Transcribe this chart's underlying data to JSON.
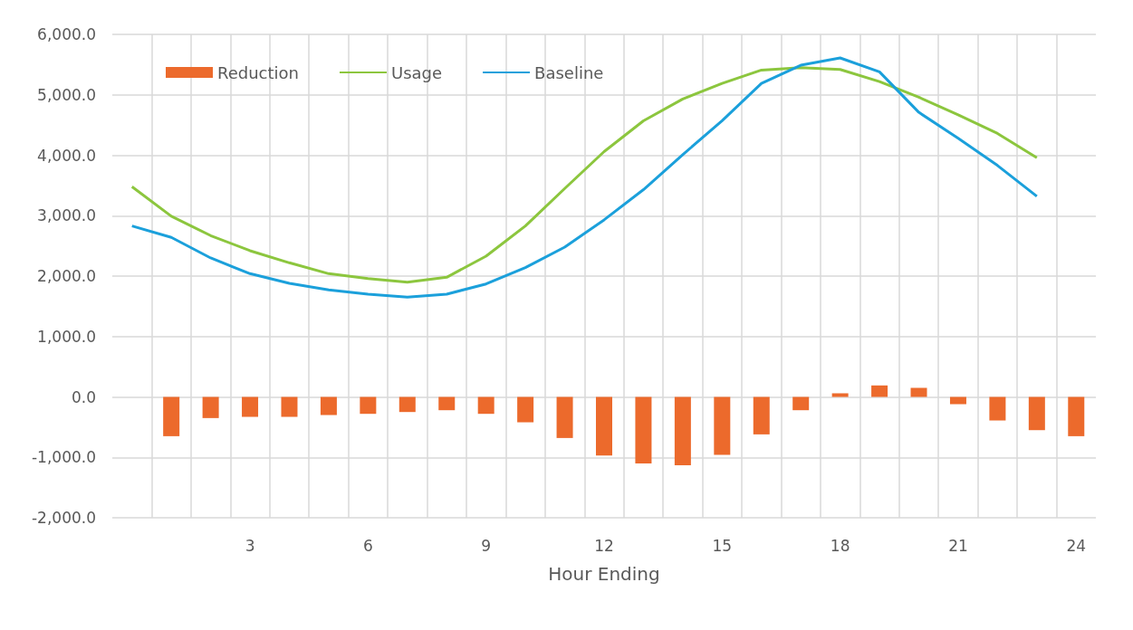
{
  "chart_data": {
    "type": "bar",
    "xlabel": "Hour Ending",
    "xlim": [
      -0.5,
      24.5
    ],
    "xticks": [
      {
        "value": 0.5,
        "label": null
      },
      {
        "value": 1.5,
        "label": null
      },
      {
        "value": 2.5,
        "label": null
      },
      3,
      {
        "value": 3.5,
        "label": null
      },
      {
        "value": 4.5,
        "label": null
      },
      {
        "value": 5.5,
        "label": null
      },
      6,
      {
        "value": 6.5,
        "label": null
      },
      {
        "value": 7.5,
        "label": null
      },
      {
        "value": 8.5,
        "label": null
      },
      9,
      {
        "value": 9.5,
        "label": null
      },
      {
        "value": 10.5,
        "label": null
      },
      {
        "value": 11.5,
        "label": null
      },
      12,
      {
        "value": 12.5,
        "label": null
      },
      {
        "value": 13.5,
        "label": null
      },
      {
        "value": 14.5,
        "label": null
      },
      15,
      {
        "value": 15.5,
        "label": null
      },
      {
        "value": 16.5,
        "label": null
      },
      {
        "value": 17.5,
        "label": null
      },
      18,
      {
        "value": 18.5,
        "label": null
      },
      {
        "value": 19.5,
        "label": null
      },
      {
        "value": 20.5,
        "label": null
      },
      21,
      {
        "value": 21.5,
        "label": null
      },
      {
        "value": 22.5,
        "label": null
      },
      {
        "value": 23.5,
        "label": null
      },
      24
    ],
    "ylim": [
      -2000,
      6000
    ],
    "yticks": [
      {
        "value": -2000,
        "label": "-2,000.0"
      },
      {
        "value": -1000,
        "label": "-1,000.0"
      },
      {
        "value": 0,
        "label": "0.0"
      },
      {
        "value": 1000,
        "label": "1,000.0"
      },
      {
        "value": 2000,
        "label": "2,000.0"
      },
      {
        "value": 3000,
        "label": "3,000.0"
      },
      {
        "value": 4000,
        "label": "4,000.0"
      },
      {
        "value": 5000,
        "label": "5,000.0"
      },
      {
        "value": 6000,
        "label": "6,000.0"
      }
    ],
    "grid": true,
    "legend": "top left",
    "series": [
      {
        "name": "Reduction",
        "color": "#ec6a2c",
        "x": [
          1,
          2,
          3,
          4,
          5,
          6,
          7,
          8,
          9,
          10,
          11,
          12,
          13,
          14,
          15,
          16,
          17,
          18,
          19,
          20,
          21,
          22,
          23,
          24
        ],
        "values": [
          -650,
          -350,
          -330,
          -330,
          -300,
          -280,
          -250,
          -220,
          -280,
          -420,
          -680,
          -970,
          -1100,
          -1130,
          -960,
          -620,
          -220,
          60,
          190,
          150,
          -120,
          -390,
          -550,
          -650
        ]
      },
      {
        "name": "Usage",
        "type": "line",
        "color": "#8cc63e",
        "marker": "none",
        "x": [
          0,
          1,
          2,
          3,
          4,
          5,
          6,
          7,
          8,
          9,
          10,
          11,
          12,
          13,
          14,
          15,
          16,
          17,
          18,
          19,
          20,
          21,
          22,
          23
        ],
        "values": [
          3480,
          2990,
          2670,
          2420,
          2220,
          2040,
          1960,
          1900,
          1980,
          2330,
          2830,
          3450,
          4060,
          4570,
          4930,
          5190,
          5410,
          5450,
          5420,
          5220,
          4960,
          4670,
          4360,
          3960
        ]
      },
      {
        "name": "Baseline",
        "type": "line",
        "color": "#1ba0db",
        "marker": "none",
        "x": [
          0,
          1,
          2,
          3,
          4,
          5,
          6,
          7,
          8,
          9,
          10,
          11,
          12,
          13,
          14,
          15,
          16,
          17,
          18,
          19,
          20,
          21,
          22,
          23
        ],
        "values": [
          2830,
          2640,
          2300,
          2040,
          1880,
          1770,
          1700,
          1650,
          1700,
          1870,
          2140,
          2480,
          2930,
          3430,
          4010,
          4570,
          5190,
          5490,
          5610,
          5380,
          4710,
          4280,
          3830,
          3320
        ]
      }
    ]
  }
}
